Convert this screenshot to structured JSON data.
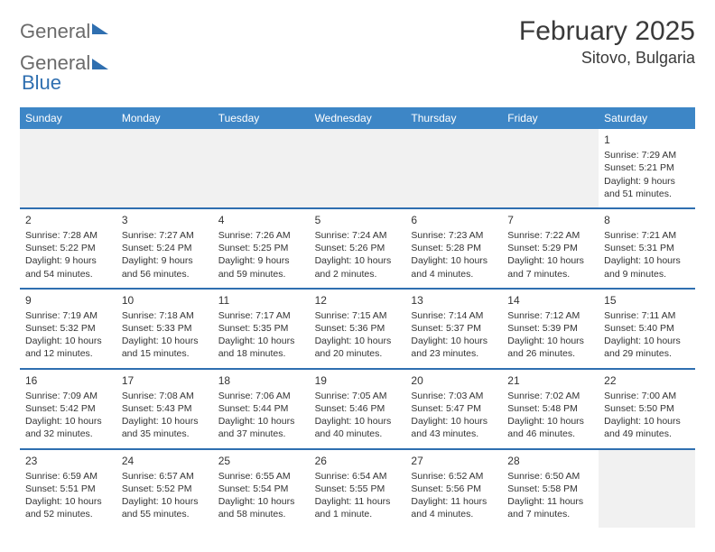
{
  "brand": {
    "part1": "General",
    "part2": "Blue"
  },
  "title": "February 2025",
  "location": "Sitovo, Bulgaria",
  "colors": {
    "header_bg": "#3d86c6",
    "rule": "#2f6fb0",
    "text": "#333333",
    "empty_bg": "#f1f1f1",
    "background": "#ffffff"
  },
  "typography": {
    "title_fontsize": 30,
    "location_fontsize": 18,
    "dayhead_fontsize": 12,
    "body_fontsize": 10.5
  },
  "day_headers": [
    "Sunday",
    "Monday",
    "Tuesday",
    "Wednesday",
    "Thursday",
    "Friday",
    "Saturday"
  ],
  "layout": {
    "first_day_index": 6,
    "num_days": 28,
    "columns": 7
  },
  "days": [
    {
      "n": 1,
      "sunrise": "7:29 AM",
      "sunset": "5:21 PM",
      "daylight": "9 hours and 51 minutes."
    },
    {
      "n": 2,
      "sunrise": "7:28 AM",
      "sunset": "5:22 PM",
      "daylight": "9 hours and 54 minutes."
    },
    {
      "n": 3,
      "sunrise": "7:27 AM",
      "sunset": "5:24 PM",
      "daylight": "9 hours and 56 minutes."
    },
    {
      "n": 4,
      "sunrise": "7:26 AM",
      "sunset": "5:25 PM",
      "daylight": "9 hours and 59 minutes."
    },
    {
      "n": 5,
      "sunrise": "7:24 AM",
      "sunset": "5:26 PM",
      "daylight": "10 hours and 2 minutes."
    },
    {
      "n": 6,
      "sunrise": "7:23 AM",
      "sunset": "5:28 PM",
      "daylight": "10 hours and 4 minutes."
    },
    {
      "n": 7,
      "sunrise": "7:22 AM",
      "sunset": "5:29 PM",
      "daylight": "10 hours and 7 minutes."
    },
    {
      "n": 8,
      "sunrise": "7:21 AM",
      "sunset": "5:31 PM",
      "daylight": "10 hours and 9 minutes."
    },
    {
      "n": 9,
      "sunrise": "7:19 AM",
      "sunset": "5:32 PM",
      "daylight": "10 hours and 12 minutes."
    },
    {
      "n": 10,
      "sunrise": "7:18 AM",
      "sunset": "5:33 PM",
      "daylight": "10 hours and 15 minutes."
    },
    {
      "n": 11,
      "sunrise": "7:17 AM",
      "sunset": "5:35 PM",
      "daylight": "10 hours and 18 minutes."
    },
    {
      "n": 12,
      "sunrise": "7:15 AM",
      "sunset": "5:36 PM",
      "daylight": "10 hours and 20 minutes."
    },
    {
      "n": 13,
      "sunrise": "7:14 AM",
      "sunset": "5:37 PM",
      "daylight": "10 hours and 23 minutes."
    },
    {
      "n": 14,
      "sunrise": "7:12 AM",
      "sunset": "5:39 PM",
      "daylight": "10 hours and 26 minutes."
    },
    {
      "n": 15,
      "sunrise": "7:11 AM",
      "sunset": "5:40 PM",
      "daylight": "10 hours and 29 minutes."
    },
    {
      "n": 16,
      "sunrise": "7:09 AM",
      "sunset": "5:42 PM",
      "daylight": "10 hours and 32 minutes."
    },
    {
      "n": 17,
      "sunrise": "7:08 AM",
      "sunset": "5:43 PM",
      "daylight": "10 hours and 35 minutes."
    },
    {
      "n": 18,
      "sunrise": "7:06 AM",
      "sunset": "5:44 PM",
      "daylight": "10 hours and 37 minutes."
    },
    {
      "n": 19,
      "sunrise": "7:05 AM",
      "sunset": "5:46 PM",
      "daylight": "10 hours and 40 minutes."
    },
    {
      "n": 20,
      "sunrise": "7:03 AM",
      "sunset": "5:47 PM",
      "daylight": "10 hours and 43 minutes."
    },
    {
      "n": 21,
      "sunrise": "7:02 AM",
      "sunset": "5:48 PM",
      "daylight": "10 hours and 46 minutes."
    },
    {
      "n": 22,
      "sunrise": "7:00 AM",
      "sunset": "5:50 PM",
      "daylight": "10 hours and 49 minutes."
    },
    {
      "n": 23,
      "sunrise": "6:59 AM",
      "sunset": "5:51 PM",
      "daylight": "10 hours and 52 minutes."
    },
    {
      "n": 24,
      "sunrise": "6:57 AM",
      "sunset": "5:52 PM",
      "daylight": "10 hours and 55 minutes."
    },
    {
      "n": 25,
      "sunrise": "6:55 AM",
      "sunset": "5:54 PM",
      "daylight": "10 hours and 58 minutes."
    },
    {
      "n": 26,
      "sunrise": "6:54 AM",
      "sunset": "5:55 PM",
      "daylight": "11 hours and 1 minute."
    },
    {
      "n": 27,
      "sunrise": "6:52 AM",
      "sunset": "5:56 PM",
      "daylight": "11 hours and 4 minutes."
    },
    {
      "n": 28,
      "sunrise": "6:50 AM",
      "sunset": "5:58 PM",
      "daylight": "11 hours and 7 minutes."
    }
  ],
  "labels": {
    "sunrise_prefix": "Sunrise: ",
    "sunset_prefix": "Sunset: ",
    "daylight_prefix": "Daylight: "
  }
}
